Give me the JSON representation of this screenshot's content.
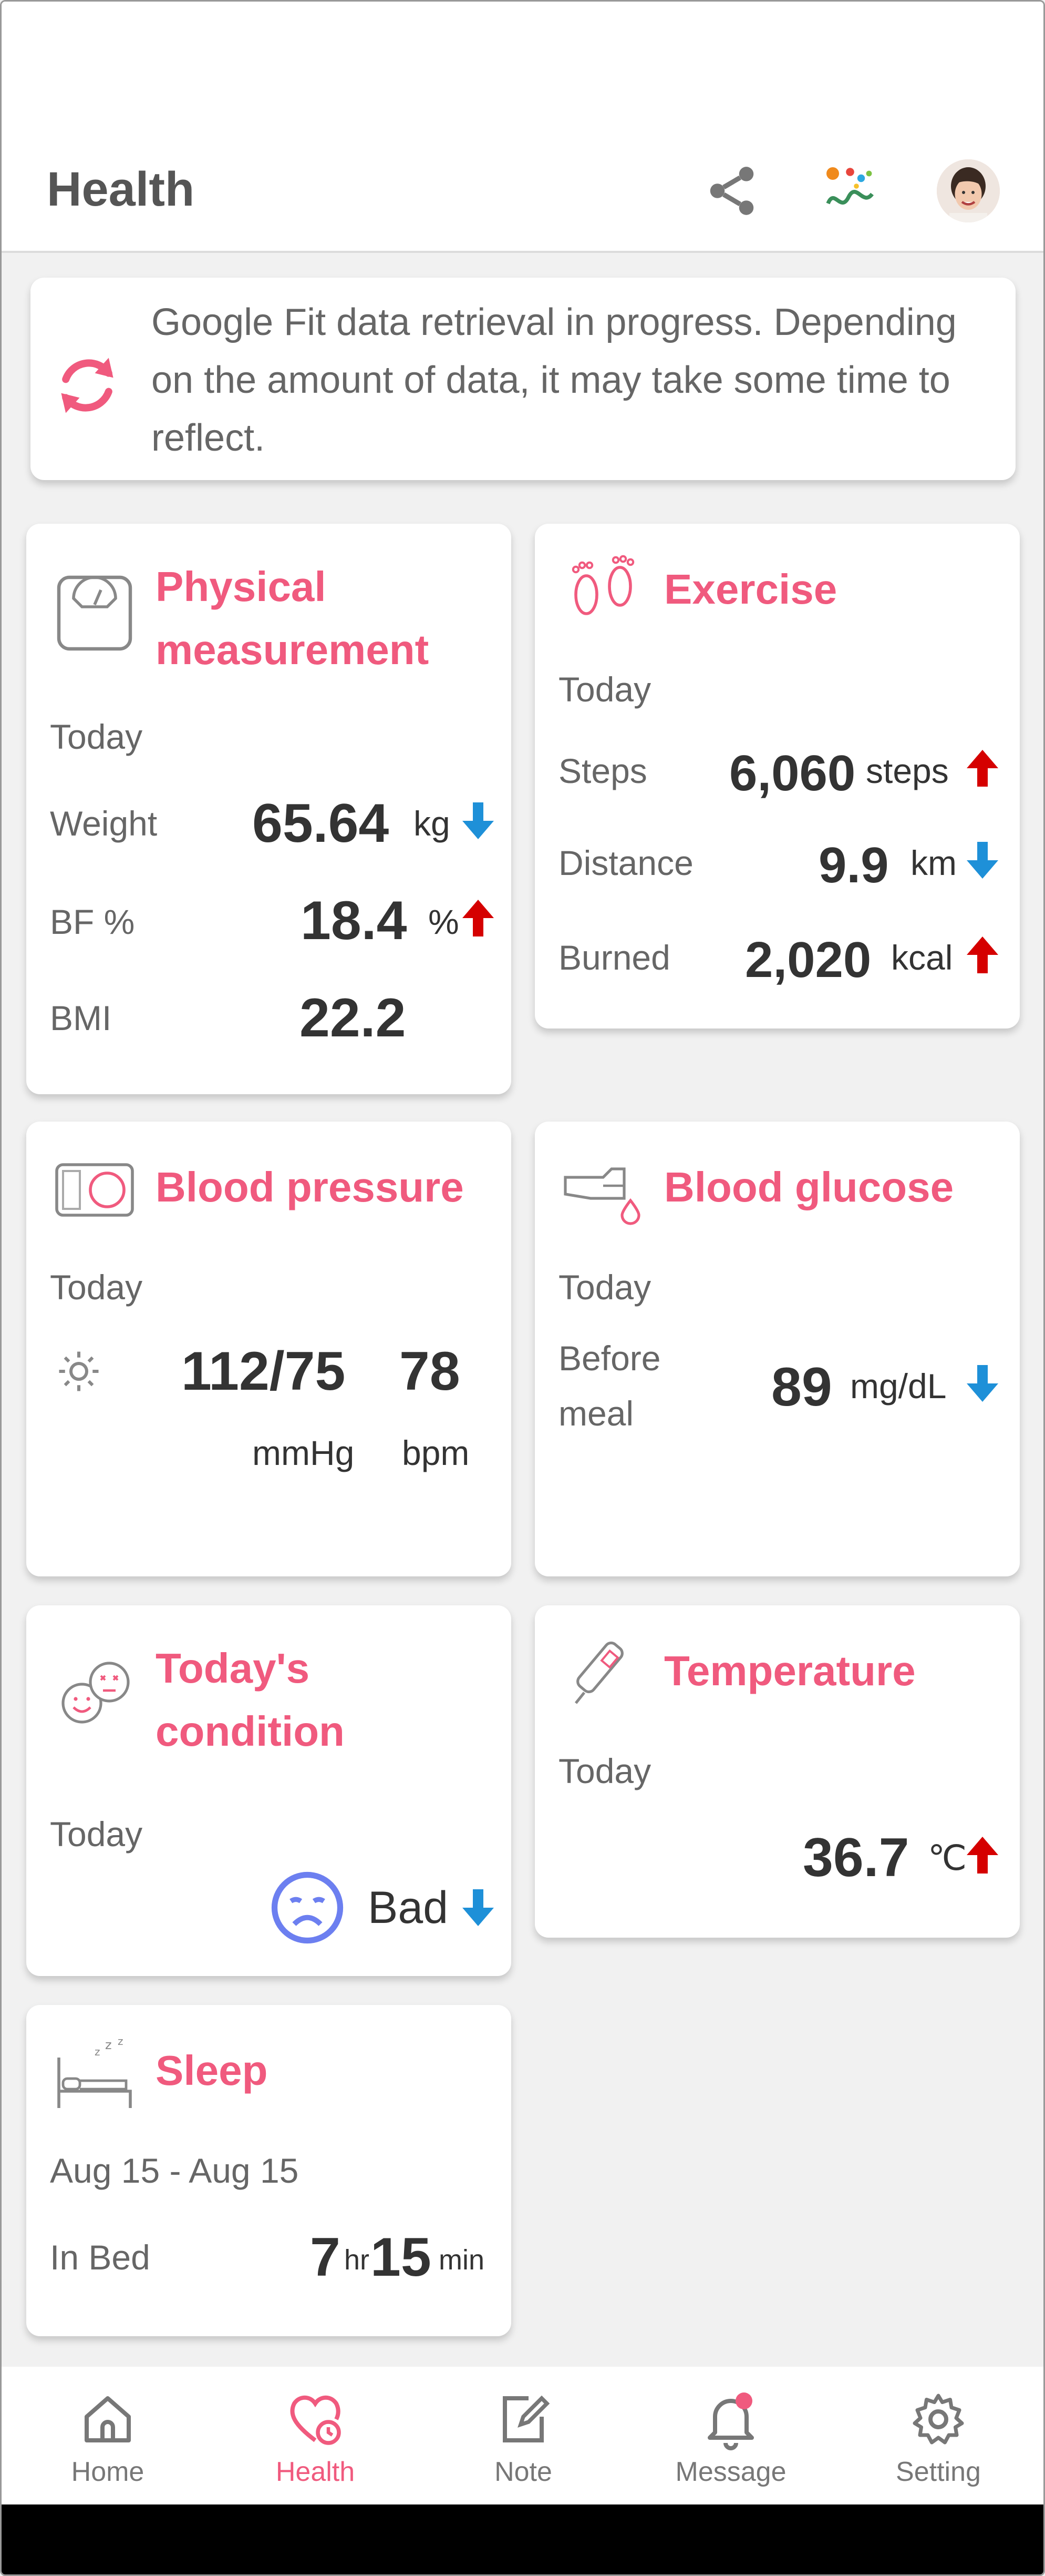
{
  "app": {
    "title": "Health",
    "icons": [
      "share-icon",
      "app-logo-icon",
      "profile-avatar"
    ]
  },
  "banner": {
    "icon": "sync-icon",
    "message": "Google Fit data retrieval in progress. Depending on the amount of data, it may take some time to reflect."
  },
  "physical": {
    "title": "Physical measurement",
    "period": "Today",
    "weight_label": "Weight",
    "weight_value": "65.64",
    "weight_unit": "kg",
    "weight_trend": "down",
    "bf_label": "BF %",
    "bf_value": "18.4",
    "bf_unit": "%",
    "bf_trend": "up",
    "bmi_label": "BMI",
    "bmi_value": "22.2"
  },
  "exercise": {
    "title": "Exercise",
    "period": "Today",
    "steps_label": "Steps",
    "steps_value": "6,060",
    "steps_unit": "steps",
    "steps_trend": "up",
    "distance_label": "Distance",
    "distance_value": "9.9",
    "distance_unit": "km",
    "distance_trend": "down",
    "burned_label": "Burned",
    "burned_value": "2,020",
    "burned_unit": "kcal",
    "burned_trend": "up"
  },
  "blood_pressure": {
    "title": "Blood pressure",
    "period": "Today",
    "value": "112/75",
    "pulse": "78",
    "unit": "mmHg",
    "pulse_unit": "bpm"
  },
  "glucose": {
    "title": "Blood glucose",
    "period": "Today",
    "label_line1": "Before",
    "label_line2": "meal",
    "value": "89",
    "unit": "mg/dL",
    "trend": "down"
  },
  "condition": {
    "title_line1": "Today's",
    "title_line2": "condition",
    "period": "Today",
    "value": "Bad",
    "trend": "down"
  },
  "temperature": {
    "title": "Temperature",
    "period": "Today",
    "value": "36.7",
    "unit": "℃",
    "trend": "up"
  },
  "sleep": {
    "title": "Sleep",
    "period": "Aug 15 - Aug 15",
    "label": "In Bed",
    "hours": "7",
    "hours_unit": "hr",
    "minutes": "15",
    "minutes_unit": "min"
  },
  "nav": {
    "items": [
      {
        "label": "Home",
        "icon": "home-icon"
      },
      {
        "label": "Health",
        "icon": "health-heart-icon",
        "active": true
      },
      {
        "label": "Note",
        "icon": "note-edit-icon"
      },
      {
        "label": "Message",
        "icon": "bell-icon",
        "badge": true
      },
      {
        "label": "Setting",
        "icon": "gear-icon"
      }
    ]
  },
  "colors": {
    "accent": "#f05a7e",
    "up_arrow": "#d50000",
    "down_arrow": "#1e90d8",
    "condition_face": "#6c7ff0"
  }
}
